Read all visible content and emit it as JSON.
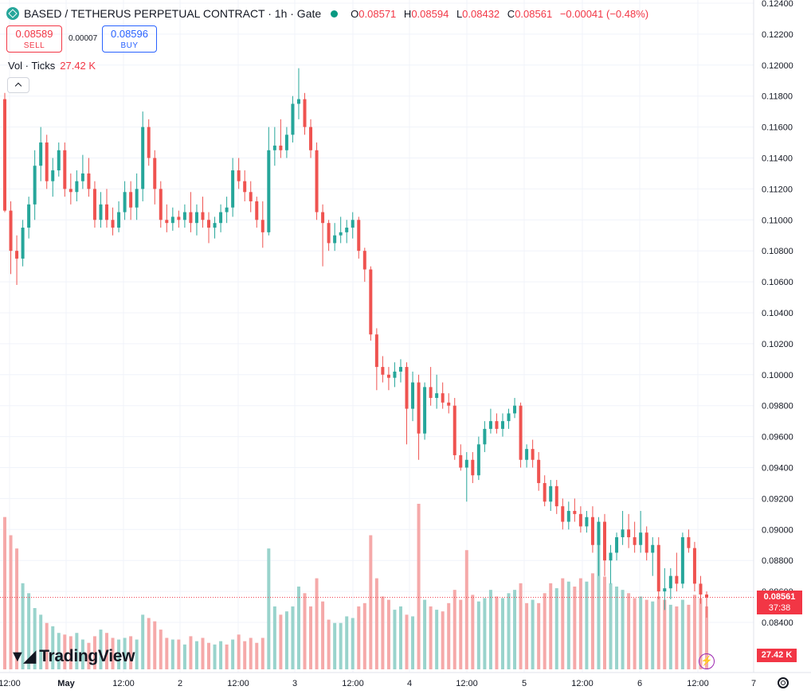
{
  "header": {
    "title": "BASED / TETHERUS PERPETUAL CONTRACT · 1h · Gate",
    "ohlc": {
      "o_label": "O",
      "o": "0.08571",
      "h_label": "H",
      "h": "0.08594",
      "l_label": "L",
      "l": "0.08432",
      "c_label": "C",
      "c": "0.08561",
      "change": "−0.00041 (−0.48%)"
    }
  },
  "trade": {
    "sell_price": "0.08589",
    "sell_label": "SELL",
    "spread": "0.00007",
    "buy_price": "0.08596",
    "buy_label": "BUY"
  },
  "volume_legend": {
    "label": "Vol · Ticks",
    "value": "27.42 K"
  },
  "price_axis_tag": {
    "price": "0.08561",
    "countdown": "37:38"
  },
  "volume_axis_tag": "27.42 K",
  "logo_text": "TradingView",
  "colors": {
    "up": "#26a69a",
    "down": "#ef5350",
    "vol_up": "#99d3cc",
    "vol_down": "#f5a9a9",
    "last_price": "#f23645"
  },
  "icons": {
    "symbol": "based-logo-icon",
    "status": "market-open-dot-icon",
    "collapse": "chevron-up-icon",
    "flash": "lightning-icon",
    "settings": "gear-icon"
  },
  "chart_data": {
    "type": "candlestick",
    "interval": "1h",
    "y_ticks": [
      "0.12400",
      "0.12200",
      "0.12000",
      "0.11800",
      "0.11600",
      "0.11400",
      "0.11200",
      "0.11000",
      "0.10800",
      "0.10600",
      "0.10400",
      "0.10200",
      "0.10000",
      "0.09800",
      "0.09600",
      "0.09400",
      "0.09200",
      "0.09000",
      "0.08800",
      "0.08600",
      "0.08400"
    ],
    "y_range": [
      0.0828,
      0.1242
    ],
    "x_ticks": [
      "12:00",
      "May",
      "12:00",
      "2",
      "12:00",
      "3",
      "12:00",
      "4",
      "12:00",
      "5",
      "12:00",
      "6",
      "12:00",
      "7"
    ],
    "last_price": 0.08561,
    "grid": true,
    "candles": [
      [
        0.1178,
        0.1182,
        0.1105,
        0.1106
      ],
      [
        0.1106,
        0.1112,
        0.1065,
        0.108
      ],
      [
        0.108,
        0.109,
        0.1058,
        0.1075
      ],
      [
        0.1075,
        0.11,
        0.107,
        0.1095
      ],
      [
        0.1095,
        0.1115,
        0.1088,
        0.111
      ],
      [
        0.111,
        0.1145,
        0.11,
        0.1135
      ],
      [
        0.1135,
        0.116,
        0.1125,
        0.115
      ],
      [
        0.115,
        0.1155,
        0.112,
        0.1125
      ],
      [
        0.1125,
        0.114,
        0.1115,
        0.1132
      ],
      [
        0.1132,
        0.115,
        0.1128,
        0.1145
      ],
      [
        0.1145,
        0.115,
        0.1115,
        0.112
      ],
      [
        0.112,
        0.113,
        0.111,
        0.1118
      ],
      [
        0.1118,
        0.1132,
        0.1112,
        0.1125
      ],
      [
        0.1125,
        0.1142,
        0.112,
        0.113
      ],
      [
        0.113,
        0.114,
        0.1115,
        0.112
      ],
      [
        0.112,
        0.1125,
        0.1095,
        0.11
      ],
      [
        0.11,
        0.1118,
        0.1095,
        0.111
      ],
      [
        0.111,
        0.112,
        0.1095,
        0.11
      ],
      [
        0.11,
        0.1108,
        0.109,
        0.1095
      ],
      [
        0.1095,
        0.1112,
        0.1092,
        0.1105
      ],
      [
        0.1105,
        0.1125,
        0.11,
        0.1118
      ],
      [
        0.1118,
        0.1125,
        0.11,
        0.1108
      ],
      [
        0.1108,
        0.113,
        0.11,
        0.112
      ],
      [
        0.112,
        0.117,
        0.1112,
        0.116
      ],
      [
        0.116,
        0.1165,
        0.1135,
        0.114
      ],
      [
        0.114,
        0.1145,
        0.111,
        0.112
      ],
      [
        0.112,
        0.1125,
        0.1095,
        0.11
      ],
      [
        0.11,
        0.111,
        0.1092,
        0.1098
      ],
      [
        0.1098,
        0.1108,
        0.1093,
        0.1102
      ],
      [
        0.1102,
        0.1106,
        0.1095,
        0.11
      ],
      [
        0.11,
        0.111,
        0.1095,
        0.1105
      ],
      [
        0.1105,
        0.1118,
        0.1092,
        0.1098
      ],
      [
        0.1098,
        0.111,
        0.109,
        0.1105
      ],
      [
        0.1105,
        0.1115,
        0.1095,
        0.11
      ],
      [
        0.11,
        0.1105,
        0.1085,
        0.1095
      ],
      [
        0.1095,
        0.1102,
        0.1088,
        0.1098
      ],
      [
        0.1098,
        0.111,
        0.1092,
        0.1105
      ],
      [
        0.1105,
        0.1115,
        0.1098,
        0.1108
      ],
      [
        0.1108,
        0.114,
        0.1102,
        0.1132
      ],
      [
        0.1132,
        0.114,
        0.112,
        0.1125
      ],
      [
        0.1125,
        0.1132,
        0.1112,
        0.1118
      ],
      [
        0.1118,
        0.1125,
        0.1105,
        0.1112
      ],
      [
        0.1112,
        0.1115,
        0.1095,
        0.11
      ],
      [
        0.11,
        0.1112,
        0.1082,
        0.1092
      ],
      [
        0.1092,
        0.116,
        0.109,
        0.1145
      ],
      [
        0.1145,
        0.116,
        0.1135,
        0.1148
      ],
      [
        0.1148,
        0.1165,
        0.114,
        0.1145
      ],
      [
        0.1145,
        0.116,
        0.114,
        0.1155
      ],
      [
        0.1155,
        0.118,
        0.115,
        0.1175
      ],
      [
        0.1175,
        0.1198,
        0.1165,
        0.1178
      ],
      [
        0.1178,
        0.1182,
        0.1155,
        0.116
      ],
      [
        0.116,
        0.1165,
        0.114,
        0.1145
      ],
      [
        0.1145,
        0.115,
        0.11,
        0.1105
      ],
      [
        0.1105,
        0.111,
        0.107,
        0.1098
      ],
      [
        0.1098,
        0.11,
        0.108,
        0.1085
      ],
      [
        0.1085,
        0.1098,
        0.108,
        0.109
      ],
      [
        0.109,
        0.1102,
        0.1085,
        0.1092
      ],
      [
        0.1092,
        0.11,
        0.1085,
        0.1095
      ],
      [
        0.1095,
        0.1105,
        0.1088,
        0.11
      ],
      [
        0.11,
        0.1102,
        0.1075,
        0.108
      ],
      [
        0.108,
        0.1082,
        0.106,
        0.1068
      ],
      [
        0.1068,
        0.107,
        0.1022,
        0.1026
      ],
      [
        0.1026,
        0.103,
        0.099,
        0.1005
      ],
      [
        0.1005,
        0.1012,
        0.0995,
        0.1
      ],
      [
        0.1,
        0.1005,
        0.099,
        0.0998
      ],
      [
        0.0998,
        0.1008,
        0.0992,
        0.1002
      ],
      [
        0.1002,
        0.101,
        0.0995,
        0.1005
      ],
      [
        0.1005,
        0.1008,
        0.0955,
        0.0978
      ],
      [
        0.0978,
        0.1002,
        0.097,
        0.0995
      ],
      [
        0.0995,
        0.1,
        0.0945,
        0.0962
      ],
      [
        0.0962,
        0.0995,
        0.0958,
        0.0992
      ],
      [
        0.0992,
        0.1005,
        0.098,
        0.0985
      ],
      [
        0.0985,
        0.1,
        0.0978,
        0.0988
      ],
      [
        0.0988,
        0.0995,
        0.0978,
        0.0982
      ],
      [
        0.0982,
        0.0988,
        0.0975,
        0.098
      ],
      [
        0.098,
        0.0985,
        0.0945,
        0.0948
      ],
      [
        0.0948,
        0.0955,
        0.0938,
        0.094
      ],
      [
        0.094,
        0.095,
        0.0918,
        0.0945
      ],
      [
        0.0945,
        0.095,
        0.093,
        0.0935
      ],
      [
        0.0935,
        0.096,
        0.0932,
        0.0955
      ],
      [
        0.0955,
        0.097,
        0.095,
        0.0965
      ],
      [
        0.0965,
        0.0978,
        0.0962,
        0.097
      ],
      [
        0.097,
        0.0975,
        0.0962,
        0.0965
      ],
      [
        0.0965,
        0.0975,
        0.096,
        0.097
      ],
      [
        0.097,
        0.0978,
        0.0965,
        0.0975
      ],
      [
        0.0975,
        0.0985,
        0.0972,
        0.098
      ],
      [
        0.098,
        0.0982,
        0.094,
        0.0945
      ],
      [
        0.0945,
        0.0955,
        0.094,
        0.0952
      ],
      [
        0.0952,
        0.0958,
        0.094,
        0.0945
      ],
      [
        0.0945,
        0.095,
        0.0925,
        0.093
      ],
      [
        0.093,
        0.0935,
        0.0915,
        0.0918
      ],
      [
        0.0918,
        0.0932,
        0.0912,
        0.0928
      ],
      [
        0.0928,
        0.0932,
        0.091,
        0.0915
      ],
      [
        0.0915,
        0.092,
        0.09,
        0.0905
      ],
      [
        0.0905,
        0.0918,
        0.09,
        0.0912
      ],
      [
        0.0912,
        0.092,
        0.0905,
        0.091
      ],
      [
        0.091,
        0.0915,
        0.0898,
        0.0902
      ],
      [
        0.0902,
        0.0912,
        0.0898,
        0.0908
      ],
      [
        0.0908,
        0.0915,
        0.0885,
        0.089
      ],
      [
        0.089,
        0.0908,
        0.087,
        0.0905
      ],
      [
        0.0905,
        0.091,
        0.087,
        0.088
      ],
      [
        0.088,
        0.089,
        0.0865,
        0.0885
      ],
      [
        0.0885,
        0.0898,
        0.088,
        0.0895
      ],
      [
        0.0895,
        0.0912,
        0.089,
        0.09
      ],
      [
        0.09,
        0.091,
        0.0888,
        0.0895
      ],
      [
        0.0895,
        0.0905,
        0.0885,
        0.089
      ],
      [
        0.089,
        0.0912,
        0.0885,
        0.0898
      ],
      [
        0.0898,
        0.0902,
        0.088,
        0.0885
      ],
      [
        0.0885,
        0.0895,
        0.087,
        0.089
      ],
      [
        0.089,
        0.0895,
        0.0855,
        0.086
      ],
      [
        0.086,
        0.0875,
        0.0848,
        0.0862
      ],
      [
        0.0862,
        0.0875,
        0.0855,
        0.087
      ],
      [
        0.087,
        0.0885,
        0.086,
        0.0865
      ],
      [
        0.0865,
        0.0898,
        0.0862,
        0.0895
      ],
      [
        0.0895,
        0.09,
        0.0885,
        0.0888
      ],
      [
        0.0888,
        0.0892,
        0.086,
        0.0865
      ],
      [
        0.0865,
        0.087,
        0.0852,
        0.0858
      ],
      [
        0.0858,
        0.086,
        0.0843,
        0.0856
      ]
    ],
    "volumes": [
      [
        0.92,
        0
      ],
      [
        0.81,
        0
      ],
      [
        0.73,
        0
      ],
      [
        0.52,
        1
      ],
      [
        0.46,
        1
      ],
      [
        0.37,
        1
      ],
      [
        0.33,
        1
      ],
      [
        0.28,
        0
      ],
      [
        0.26,
        1
      ],
      [
        0.22,
        1
      ],
      [
        0.21,
        0
      ],
      [
        0.2,
        0
      ],
      [
        0.22,
        1
      ],
      [
        0.18,
        1
      ],
      [
        0.16,
        0
      ],
      [
        0.2,
        0
      ],
      [
        0.24,
        1
      ],
      [
        0.22,
        0
      ],
      [
        0.19,
        0
      ],
      [
        0.18,
        1
      ],
      [
        0.19,
        1
      ],
      [
        0.2,
        0
      ],
      [
        0.18,
        1
      ],
      [
        0.33,
        1
      ],
      [
        0.31,
        0
      ],
      [
        0.29,
        0
      ],
      [
        0.24,
        0
      ],
      [
        0.19,
        0
      ],
      [
        0.18,
        1
      ],
      [
        0.18,
        0
      ],
      [
        0.15,
        1
      ],
      [
        0.2,
        0
      ],
      [
        0.17,
        1
      ],
      [
        0.19,
        0
      ],
      [
        0.16,
        0
      ],
      [
        0.15,
        1
      ],
      [
        0.17,
        1
      ],
      [
        0.15,
        0
      ],
      [
        0.18,
        1
      ],
      [
        0.21,
        0
      ],
      [
        0.17,
        0
      ],
      [
        0.19,
        0
      ],
      [
        0.16,
        0
      ],
      [
        0.19,
        0
      ],
      [
        0.73,
        1
      ],
      [
        0.38,
        1
      ],
      [
        0.33,
        0
      ],
      [
        0.35,
        1
      ],
      [
        0.38,
        1
      ],
      [
        0.5,
        1
      ],
      [
        0.46,
        0
      ],
      [
        0.38,
        0
      ],
      [
        0.55,
        0
      ],
      [
        0.41,
        0
      ],
      [
        0.3,
        0
      ],
      [
        0.28,
        1
      ],
      [
        0.28,
        1
      ],
      [
        0.32,
        1
      ],
      [
        0.31,
        1
      ],
      [
        0.38,
        0
      ],
      [
        0.4,
        0
      ],
      [
        0.81,
        0
      ],
      [
        0.55,
        0
      ],
      [
        0.44,
        0
      ],
      [
        0.42,
        0
      ],
      [
        0.36,
        1
      ],
      [
        0.38,
        1
      ],
      [
        0.33,
        0
      ],
      [
        0.32,
        1
      ],
      [
        1.0,
        0
      ],
      [
        0.42,
        1
      ],
      [
        0.38,
        0
      ],
      [
        0.36,
        1
      ],
      [
        0.35,
        0
      ],
      [
        0.4,
        0
      ],
      [
        0.48,
        0
      ],
      [
        0.42,
        0
      ],
      [
        0.72,
        0
      ],
      [
        0.45,
        0
      ],
      [
        0.41,
        1
      ],
      [
        0.43,
        1
      ],
      [
        0.48,
        1
      ],
      [
        0.44,
        0
      ],
      [
        0.43,
        1
      ],
      [
        0.46,
        1
      ],
      [
        0.48,
        1
      ],
      [
        0.52,
        0
      ],
      [
        0.4,
        0
      ],
      [
        0.42,
        1
      ],
      [
        0.4,
        0
      ],
      [
        0.46,
        0
      ],
      [
        0.52,
        0
      ],
      [
        0.49,
        1
      ],
      [
        0.55,
        0
      ],
      [
        0.53,
        1
      ],
      [
        0.5,
        0
      ],
      [
        0.55,
        0
      ],
      [
        0.53,
        1
      ],
      [
        0.58,
        0
      ],
      [
        0.86,
        1
      ],
      [
        0.56,
        0
      ],
      [
        0.52,
        1
      ],
      [
        0.5,
        1
      ],
      [
        0.48,
        1
      ],
      [
        0.46,
        0
      ],
      [
        0.43,
        0
      ],
      [
        0.44,
        1
      ],
      [
        0.42,
        0
      ],
      [
        0.41,
        1
      ],
      [
        0.44,
        0
      ],
      [
        0.42,
        0
      ],
      [
        0.39,
        1
      ],
      [
        0.38,
        0
      ],
      [
        0.42,
        1
      ],
      [
        0.39,
        0
      ],
      [
        0.45,
        0
      ],
      [
        0.43,
        0
      ],
      [
        0.38,
        0
      ]
    ]
  }
}
